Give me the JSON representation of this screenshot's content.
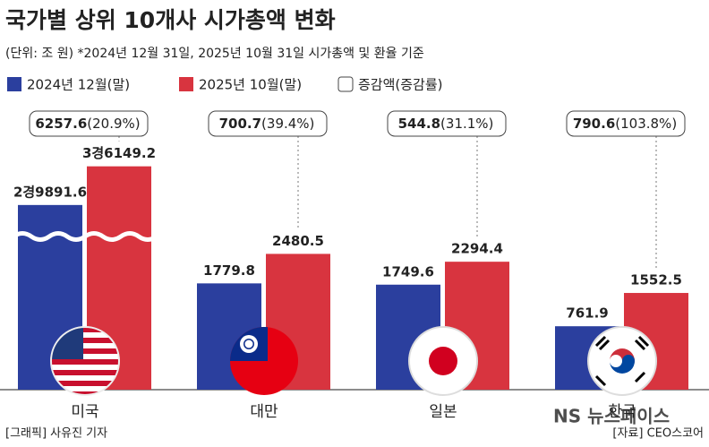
{
  "chart_data": {
    "type": "bar",
    "title": "국가별 상위 10개사 시가총액 변화",
    "subtitle": "(단위: 조 원) *2024년 12월 31일, 2025년 10월 31일 시가총액 및 환율 기준",
    "categories": [
      "미국",
      "대만",
      "일본",
      "한국"
    ],
    "series": [
      {
        "name": "2024년 12월(말)",
        "color": "#2b3f9e",
        "values": [
          29891.6,
          1779.8,
          1749.6,
          761.9
        ],
        "value_labels": [
          "2경9891.6",
          "1779.8",
          "1749.6",
          "761.9"
        ]
      },
      {
        "name": "2025년 10월(말)",
        "color": "#d8343f",
        "values": [
          36149.2,
          2480.5,
          2294.4,
          1552.5
        ],
        "value_labels": [
          "3경6149.2",
          "2480.5",
          "2294.4",
          "1552.5"
        ]
      }
    ],
    "change_legend": "증감액(증감률)",
    "changes": [
      6257.6,
      700.7,
      544.8,
      790.6
    ],
    "change_rate_labels": [
      "(20.9%)",
      "(39.4%)",
      "(31.1%)",
      "(103.8%)"
    ],
    "credit": "[그래픽] 사유진 기자",
    "source": "[자료] CEO스코어",
    "watermark": "NS 뉴스페이스"
  }
}
